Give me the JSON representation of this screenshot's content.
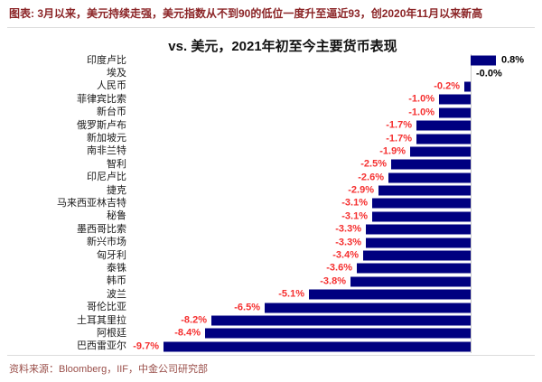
{
  "header": {
    "title": "图表: 3月以来，美元持续走强，美元指数从不到90的低位一度升至逼近93，创2020年11月以来新高"
  },
  "chart_data": {
    "type": "bar",
    "orientation": "horizontal",
    "title": "vs. 美元，2021年初至今主要货币表现",
    "unit": "%",
    "categories": [
      "印度卢比",
      "埃及",
      "人民币",
      "菲律宾比索",
      "新台币",
      "俄罗斯卢布",
      "新加坡元",
      "南非兰特",
      "智利",
      "印尼卢比",
      "捷克",
      "马来西亚林吉特",
      "秘鲁",
      "墨西哥比索",
      "新兴市场",
      "匈牙利",
      "泰铢",
      "韩币",
      "波兰",
      "哥伦比亚",
      "土耳其里拉",
      "阿根廷",
      "巴西雷亚尔"
    ],
    "values": [
      0.8,
      -0.0,
      -0.2,
      -1.0,
      -1.0,
      -1.7,
      -1.7,
      -1.9,
      -2.5,
      -2.6,
      -2.9,
      -3.1,
      -3.1,
      -3.3,
      -3.3,
      -3.4,
      -3.6,
      -3.8,
      -5.1,
      -6.5,
      -8.2,
      -8.4,
      -9.7
    ],
    "value_labels": [
      "0.8%",
      "-0.0%",
      "-0.2%",
      "-1.0%",
      "-1.0%",
      "-1.7%",
      "-1.7%",
      "-1.9%",
      "-2.5%",
      "-2.6%",
      "-2.9%",
      "-3.1%",
      "-3.1%",
      "-3.3%",
      "-3.3%",
      "-3.4%",
      "-3.6%",
      "-3.8%",
      "-5.1%",
      "-6.5%",
      "-8.2%",
      "-8.4%",
      "-9.7%"
    ],
    "xlim": [
      -10.6,
      1.2
    ],
    "grid": false,
    "legend": false,
    "zero_axis_line": true
  },
  "colors": {
    "bar": "#000080",
    "negative_value_label": "#f53030",
    "positive_value_label": "#000000",
    "header_title": "#8b2426",
    "footer_text": "#9a4f4a",
    "axis_line": "#c9c9c9"
  },
  "footer": {
    "source": "资料来源：Bloomberg，IIF，中金公司研究部"
  }
}
